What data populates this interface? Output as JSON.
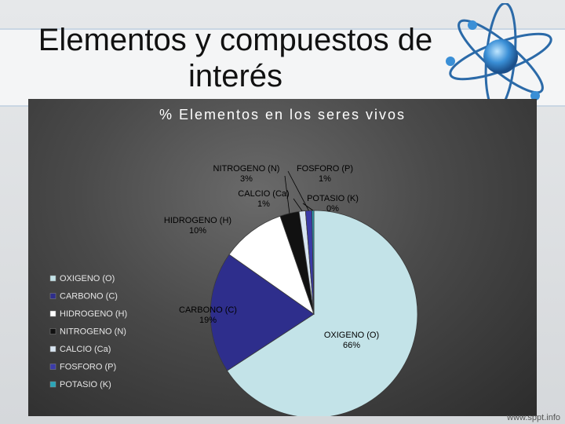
{
  "slide": {
    "title": "Elementos y compuestos de interés",
    "watermark": "www.sppt.info",
    "logo_icon": "atom-icon"
  },
  "colors": {
    "oxigeno": "#c3e3e8",
    "carbono": "#2e2e8c",
    "hidrogeno": "#ffffff",
    "nitrogeno": "#111111",
    "calcio": "#d8e6f2",
    "fosforo": "#3b3ba8",
    "potasio": "#2aa6b8"
  },
  "chart_data": {
    "type": "pie",
    "title": "% Elementos en los seres vivos",
    "legend_position": "left",
    "slices": [
      {
        "name": "OXIGENO (O)",
        "value": 66,
        "label": "66%",
        "color": "#c3e3e8"
      },
      {
        "name": "CARBONO (C)",
        "value": 19,
        "label": "19%",
        "color": "#2e2e8c"
      },
      {
        "name": "HIDROGENO (H)",
        "value": 10,
        "label": "10%",
        "color": "#ffffff"
      },
      {
        "name": "NITROGENO (N)",
        "value": 3,
        "label": "3%",
        "color": "#111111"
      },
      {
        "name": "CALCIO (Ca)",
        "value": 1,
        "label": "1%",
        "color": "#d8e6f2"
      },
      {
        "name": "FOSFORO (P)",
        "value": 1,
        "label": "1%",
        "color": "#3b3ba8"
      },
      {
        "name": "POTASIO (K)",
        "value": 0.3,
        "label": "0%",
        "color": "#2aa6b8"
      }
    ]
  }
}
